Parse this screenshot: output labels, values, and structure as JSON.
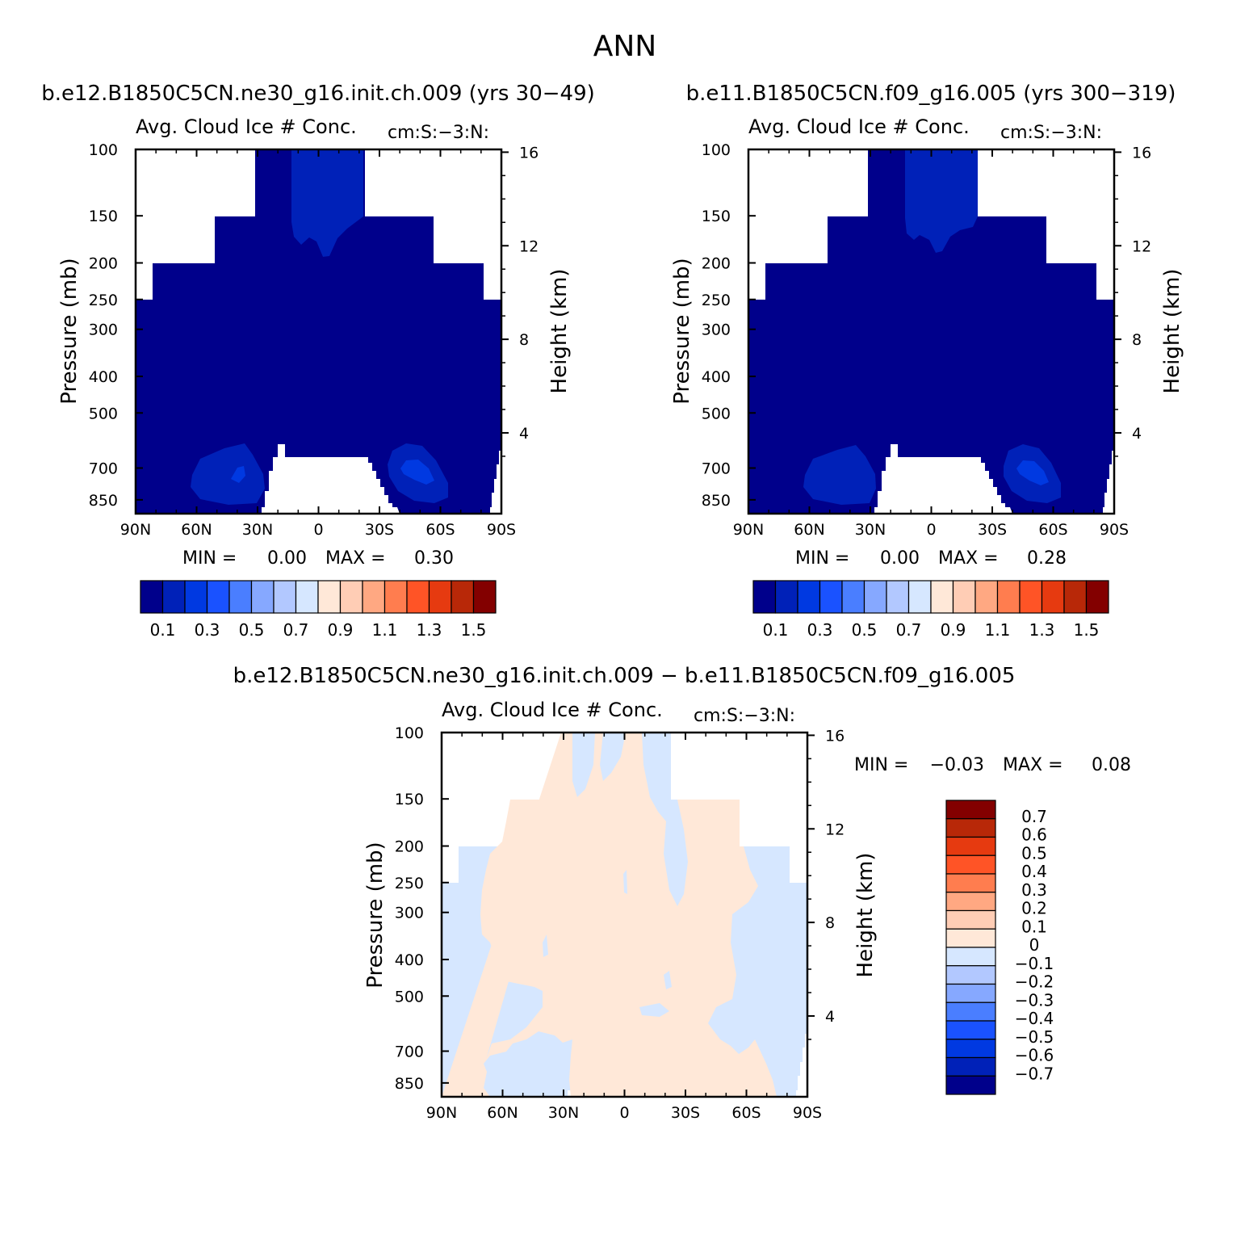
{
  "figure_title": "ANN",
  "chart_data": [
    {
      "type": "heatmap",
      "case_title": "b.e12.B1850C5CN.ne30_g16.init.ch.009 (yrs 30−49)",
      "title": "Avg. Cloud Ice # Conc.",
      "units": "cm:S:−3:N:",
      "ylabel": "Pressure (mb)",
      "y2label": "Height (km)",
      "x_ticks": [
        "90N",
        "60N",
        "30N",
        "0",
        "30S",
        "60S",
        "90S"
      ],
      "y_ticks": [
        "100",
        "150",
        "200",
        "250",
        "300",
        "400",
        "500",
        "700",
        "850"
      ],
      "y2_ticks": [
        "16",
        "12",
        "8",
        "4"
      ],
      "min_label": "MIN =",
      "min_value": "0.00",
      "max_label": "MAX =",
      "max_value": "0.30",
      "levels": [
        "0.1",
        "0.3",
        "0.5",
        "0.7",
        "0.9",
        "1.1",
        "1.3",
        "1.5"
      ]
    },
    {
      "type": "heatmap",
      "case_title": "b.e11.B1850C5CN.f09_g16.005 (yrs 300−319)",
      "title": "Avg. Cloud Ice # Conc.",
      "units": "cm:S:−3:N:",
      "ylabel": "Pressure (mb)",
      "y2label": "Height (km)",
      "x_ticks": [
        "90N",
        "60N",
        "30N",
        "0",
        "30S",
        "60S",
        "90S"
      ],
      "y_ticks": [
        "100",
        "150",
        "200",
        "250",
        "300",
        "400",
        "500",
        "700",
        "850"
      ],
      "y2_ticks": [
        "16",
        "12",
        "8",
        "4"
      ],
      "min_label": "MIN =",
      "min_value": "0.00",
      "max_label": "MAX =",
      "max_value": "0.28",
      "levels": [
        "0.1",
        "0.3",
        "0.5",
        "0.7",
        "0.9",
        "1.1",
        "1.3",
        "1.5"
      ]
    },
    {
      "type": "heatmap",
      "case_title": "b.e12.B1850C5CN.ne30_g16.init.ch.009 − b.e11.B1850C5CN.f09_g16.005",
      "title": "Avg. Cloud Ice # Conc.",
      "units": "cm:S:−3:N:",
      "ylabel": "Pressure (mb)",
      "y2label": "Height (km)",
      "x_ticks": [
        "90N",
        "60N",
        "30N",
        "0",
        "30S",
        "60S",
        "90S"
      ],
      "y_ticks": [
        "100",
        "150",
        "200",
        "250",
        "300",
        "400",
        "500",
        "700",
        "850"
      ],
      "y2_ticks": [
        "16",
        "12",
        "8",
        "4"
      ],
      "min_label": "MIN =",
      "min_value": "−0.03",
      "max_label": "MAX =",
      "max_value": "0.08",
      "levels": [
        "0.7",
        "0.6",
        "0.5",
        "0.4",
        "0.3",
        "0.2",
        "0.1",
        "0",
        "−0.1",
        "−0.2",
        "−0.3",
        "−0.4",
        "−0.5",
        "−0.6",
        "−0.7"
      ]
    }
  ],
  "colors": {
    "scale16": [
      "#00008b",
      "#0021b8",
      "#0039e1",
      "#1a52ff",
      "#4a7eff",
      "#86a8ff",
      "#b2c8ff",
      "#d6e7ff",
      "#ffe8d8",
      "#ffcdb5",
      "#ffa882",
      "#ff7d4f",
      "#ff5426",
      "#e63a10",
      "#b82808",
      "#830000"
    ],
    "deep": "#00008b",
    "mid": "#0021b8",
    "bright": "#0039e1",
    "neg_light": "#d6e7ff",
    "pos_light": "#ffe8d8"
  }
}
